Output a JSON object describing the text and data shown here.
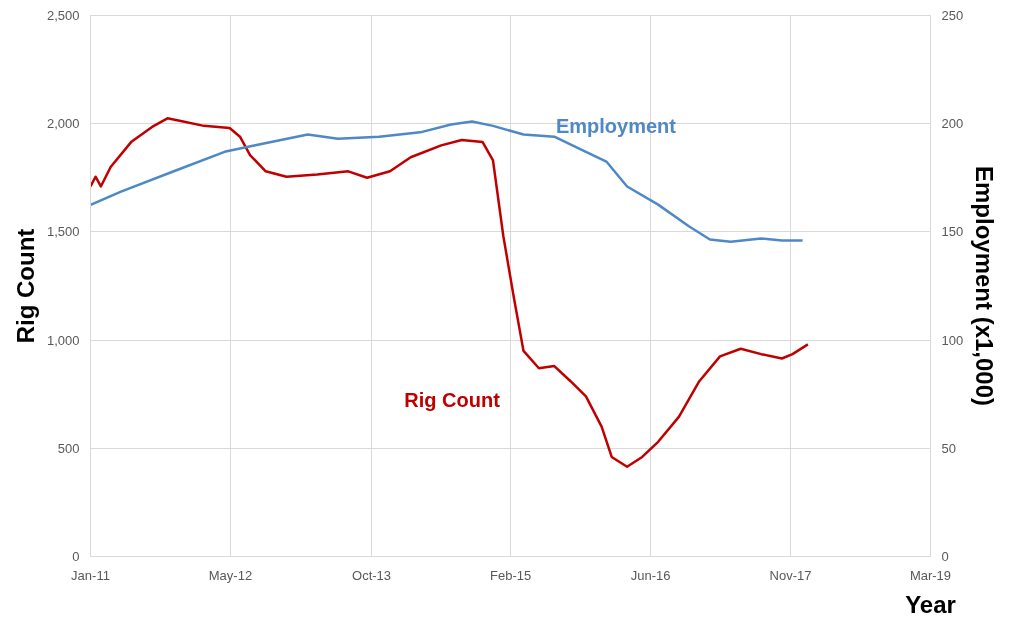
{
  "chart_data": {
    "type": "line",
    "xlabel": "Year",
    "ylabel": "Rig Count",
    "y2label": "Employment (x1,000)",
    "xlim": [
      "2011-01-01",
      "2019-03-21"
    ],
    "xticks": [
      {
        "value": "2011-01-01",
        "label": "Jan-11"
      },
      {
        "value": "2012-05-15",
        "label": "May-12"
      },
      {
        "value": "2013-10-01",
        "label": "Oct-13"
      },
      {
        "value": "2015-02-10",
        "label": "Feb-15"
      },
      {
        "value": "2016-06-24",
        "label": "Jun-16"
      },
      {
        "value": "2017-11-06",
        "label": "Nov-17"
      },
      {
        "value": "2019-03-21",
        "label": "Mar-19"
      }
    ],
    "ylim": [
      0,
      2500
    ],
    "yticks": [
      0,
      {
        "value": 500,
        "label": "500"
      },
      {
        "value": 1000,
        "label": "1,000"
      },
      {
        "value": 1500,
        "label": "1,500"
      },
      {
        "value": 2000,
        "label": "2,000"
      },
      {
        "value": 2500,
        "label": "2,500"
      }
    ],
    "y2lim": [
      0,
      250
    ],
    "y2ticks": [
      0,
      50,
      100,
      150,
      200,
      250
    ],
    "grid": true,
    "series": [
      {
        "name": "Rig Count",
        "color": "#c00000",
        "x": [
          "2011-01-01",
          "2011-01-19",
          "2011-02-07",
          "2011-03-14",
          "2011-05-26",
          "2011-08-09",
          "2011-10-03",
          "2011-11-28",
          "2012-02-10",
          "2012-05-12",
          "2012-06-18",
          "2012-07-24",
          "2012-09-18",
          "2012-12-01",
          "2013-03-21",
          "2013-07-10",
          "2013-09-15",
          "2013-12-06",
          "2014-02-18",
          "2014-06-07",
          "2014-08-19",
          "2014-11-02",
          "2014-12-09",
          "2015-01-15",
          "2015-02-21",
          "2015-03-28",
          "2015-05-22",
          "2015-07-16",
          "2015-09-12",
          "2015-11-06",
          "2016-01-01",
          "2016-02-06",
          "2016-04-01",
          "2016-05-25",
          "2016-07-21",
          "2016-10-03",
          "2016-12-15",
          "2017-02-27",
          "2017-05-12",
          "2017-07-24",
          "2017-10-06",
          "2017-11-13",
          "2018-01-07"
        ],
        "values": [
          1710,
          1755,
          1710,
          1800,
          1915,
          1985,
          2025,
          2010,
          1990,
          1980,
          1940,
          1855,
          1780,
          1755,
          1765,
          1780,
          1750,
          1780,
          1845,
          1900,
          1925,
          1915,
          1830,
          1480,
          1200,
          950,
          870,
          880,
          810,
          740,
          600,
          460,
          415,
          460,
          530,
          645,
          810,
          925,
          960,
          935,
          915,
          935,
          980
        ]
      },
      {
        "name": "Employment",
        "color": "#4f88c6",
        "axis": "y2",
        "x": [
          "2011-01-01",
          "2011-04-20",
          "2011-10-21",
          "2012-04-24",
          "2012-08-12",
          "2012-10-25",
          "2013-02-15",
          "2013-06-03",
          "2013-10-28",
          "2014-03-24",
          "2014-07-12",
          "2014-09-25",
          "2014-12-09",
          "2015-03-28",
          "2015-07-16",
          "2015-11-06",
          "2016-01-18",
          "2016-04-01",
          "2016-07-21",
          "2016-11-09",
          "2017-01-22",
          "2017-04-06",
          "2017-07-24",
          "2017-10-06",
          "2017-12-19"
        ],
        "values": [
          162.5,
          168.6,
          177.8,
          187,
          190,
          192,
          195,
          193,
          194,
          196,
          199.6,
          201,
          199,
          195,
          194,
          187,
          182.5,
          171,
          162.6,
          152.5,
          146.5,
          145.5,
          147,
          146,
          146
        ]
      }
    ]
  }
}
